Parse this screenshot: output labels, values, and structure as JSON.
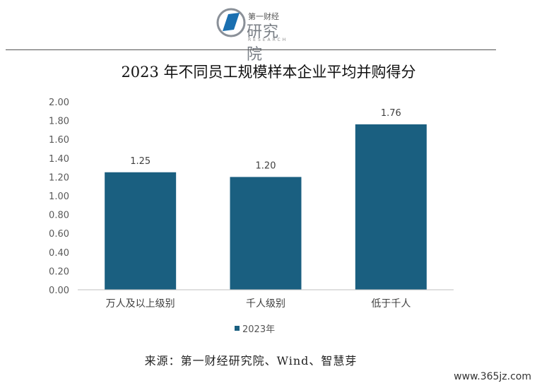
{
  "header": {
    "logo_top": "第一财经",
    "logo_main": "研究院",
    "logo_sub": "RESEARCH"
  },
  "footer": {
    "source": "来源：第一财经研究院、Wind、智慧芽",
    "watermark": "www.365jz.com"
  },
  "colors": {
    "bar": "#1a5f80",
    "axis": "#bfbfbf"
  },
  "chart_data": {
    "type": "bar",
    "title": "2023 年不同员工规模样本企业平均并购得分",
    "categories": [
      "万人及以上级别",
      "千人级别",
      "低于千人"
    ],
    "series": [
      {
        "name": "2023年",
        "values": [
          1.25,
          1.2,
          1.76
        ]
      }
    ],
    "data_labels": [
      "1.25",
      "1.20",
      "1.76"
    ],
    "ylim": [
      0,
      2.0
    ],
    "yticks": [
      "0.00",
      "0.20",
      "0.40",
      "0.60",
      "0.80",
      "1.00",
      "1.20",
      "1.40",
      "1.60",
      "1.80",
      "2.00"
    ],
    "grid": false,
    "legend": "bottom"
  }
}
